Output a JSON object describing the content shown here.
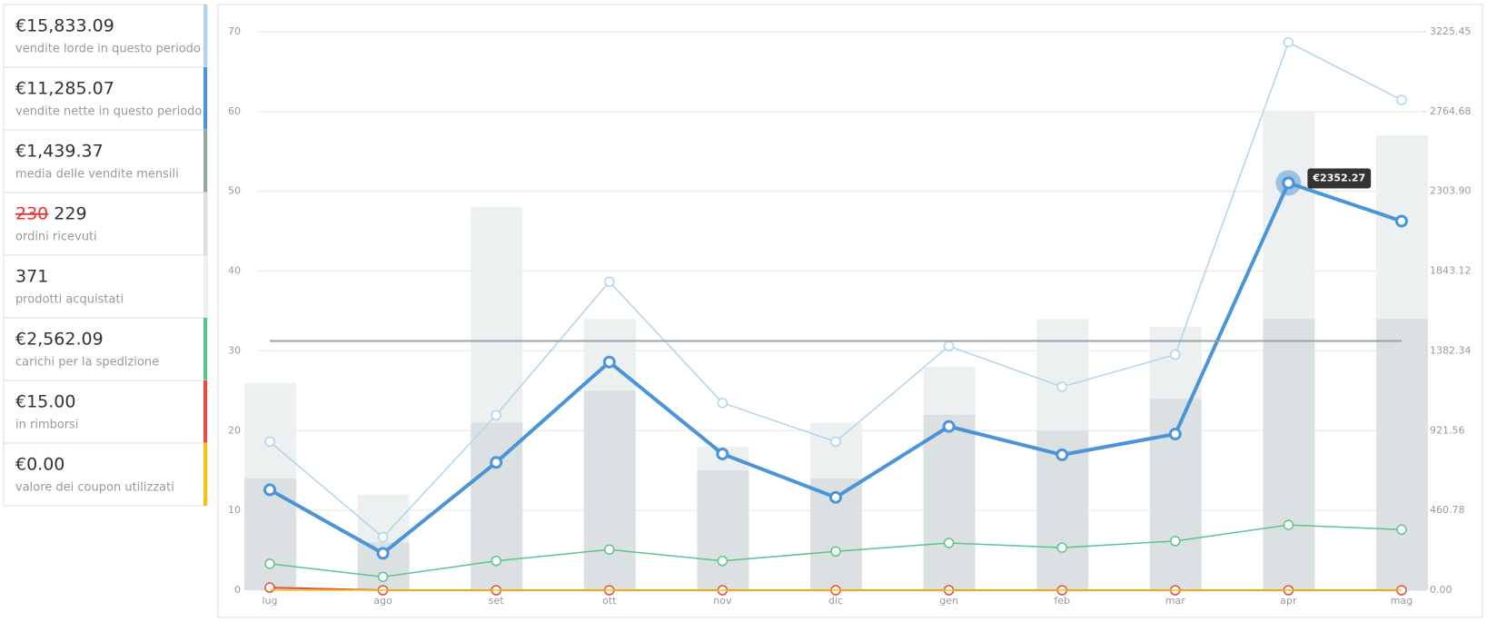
{
  "chart_data": {
    "type": "bar",
    "categories": [
      "lug",
      "ago",
      "set",
      "ott",
      "nov",
      "dic",
      "gen",
      "feb",
      "mar",
      "apr",
      "mag"
    ],
    "ylim": [
      0,
      70
    ],
    "yticks": [
      0,
      10,
      20,
      30,
      40,
      50,
      60,
      70
    ],
    "y2lim": [
      0,
      3225.45
    ],
    "y2ticks": [
      {
        "value": 0,
        "label": "0.00"
      },
      460.78,
      921.56,
      1382.34,
      1843.12,
      {
        "value": 2303.9,
        "label": "2303.90"
      },
      2764.68,
      3225.45
    ],
    "grid": true,
    "series": [
      {
        "name": "vendite lorde in questo periodo",
        "total_label": "€15,833.09",
        "type": "line",
        "axis": "y2",
        "color": "#b1d4ea",
        "width": 1.5,
        "values": [
          858,
          306,
          1011,
          1782,
          1082,
          858,
          1410,
          1175,
          1361,
          3165,
          2832
        ]
      },
      {
        "name": "vendite nette in questo periodo",
        "total_label": "€11,285.07",
        "type": "line",
        "axis": "y2",
        "color": "#4a94d8",
        "width": 4,
        "values": [
          580,
          213,
          738,
          1318,
          787,
          536,
          946,
          782,
          902,
          2352.27,
          2132
        ]
      },
      {
        "name": "media delle vendite mensili",
        "total_label": "€1,439.37",
        "type": "line",
        "axis": "y2",
        "color": "#95a5a6",
        "width": 2,
        "points": false,
        "values": [
          1439.37,
          1439.37,
          1439.37,
          1439.37,
          1439.37,
          1439.37,
          1439.37,
          1439.37,
          1439.37,
          1439.37,
          1439.37
        ]
      },
      {
        "name": "ordini ricevuti",
        "struck_label": "230",
        "total_label": "229",
        "type": "bar",
        "color": "#dbe1e3",
        "values": [
          14,
          6,
          21,
          25,
          15,
          14,
          22,
          20,
          24,
          34,
          34
        ]
      },
      {
        "name": "prodotti acquistati",
        "total_label": "371",
        "type": "bar",
        "color": "#ecf0f1",
        "values": [
          26,
          12,
          48,
          34,
          18,
          21,
          28,
          34,
          33,
          60,
          57
        ]
      },
      {
        "name": "carichi per la spedizione",
        "total_label": "€2,562.09",
        "type": "line",
        "axis": "y2",
        "color": "#5cc488",
        "width": 1.5,
        "values": [
          153,
          77,
          169,
          235,
          169,
          224,
          273,
          246,
          284,
          377,
          350
        ]
      },
      {
        "name": "in rimborsi",
        "total_label": "€15.00",
        "type": "line",
        "axis": "y2",
        "color": "#e74c3c",
        "width": 2,
        "values": [
          15,
          0,
          0,
          0,
          0,
          0,
          0,
          0,
          0,
          0,
          0
        ]
      },
      {
        "name": "valore dei coupon utilizzati",
        "total_label": "€0.00",
        "type": "line",
        "axis": "y2",
        "color": "#f1c40f",
        "width": 1.5,
        "points": false,
        "values": [
          0,
          0,
          0,
          0,
          0,
          0,
          0,
          0,
          0,
          0,
          0
        ]
      }
    ],
    "tooltip": {
      "category": "apr",
      "text": "€2352.27"
    }
  }
}
